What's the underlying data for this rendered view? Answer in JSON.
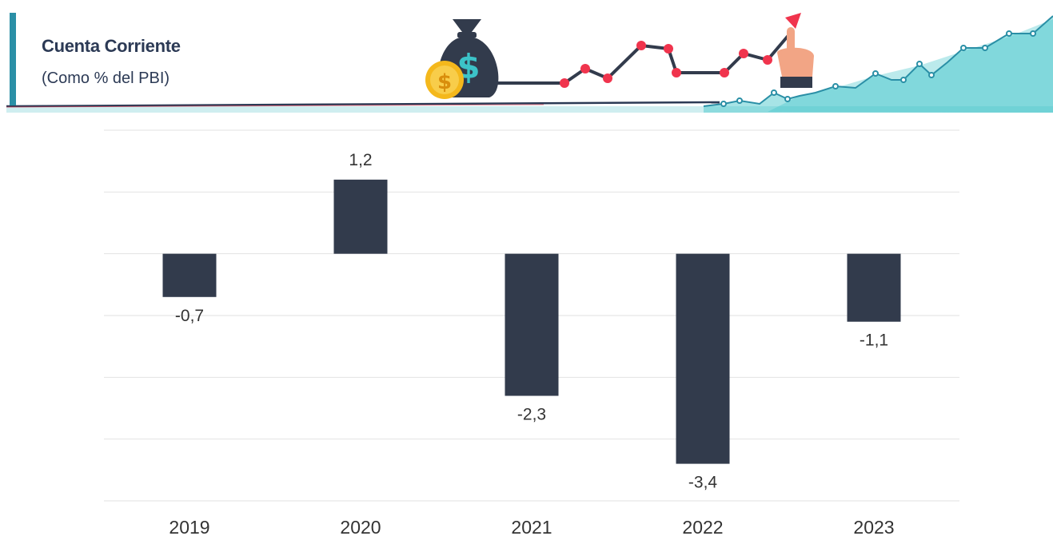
{
  "header": {
    "title": "Cuenta Corriente",
    "subtitle": "(Como % del PBI)"
  },
  "colors": {
    "bar": "#323b4c",
    "accent": "#2a8fa6",
    "header_red": "#f0344d",
    "header_teal": "#3cc3c8",
    "grid": "#e2e2e2"
  },
  "chart_data": {
    "type": "bar",
    "title": "Cuenta Corriente",
    "subtitle": "(Como % del PBI)",
    "categories": [
      "2019",
      "2020",
      "2021",
      "2022",
      "2023"
    ],
    "values": [
      -0.7,
      1.2,
      -2.3,
      -3.4,
      -1.1
    ],
    "labels": [
      "-0,7",
      "1,2",
      "-2,3",
      "-3,4",
      "-1,1"
    ],
    "ylim": [
      -4,
      2
    ],
    "grid": true,
    "legend": "none"
  }
}
